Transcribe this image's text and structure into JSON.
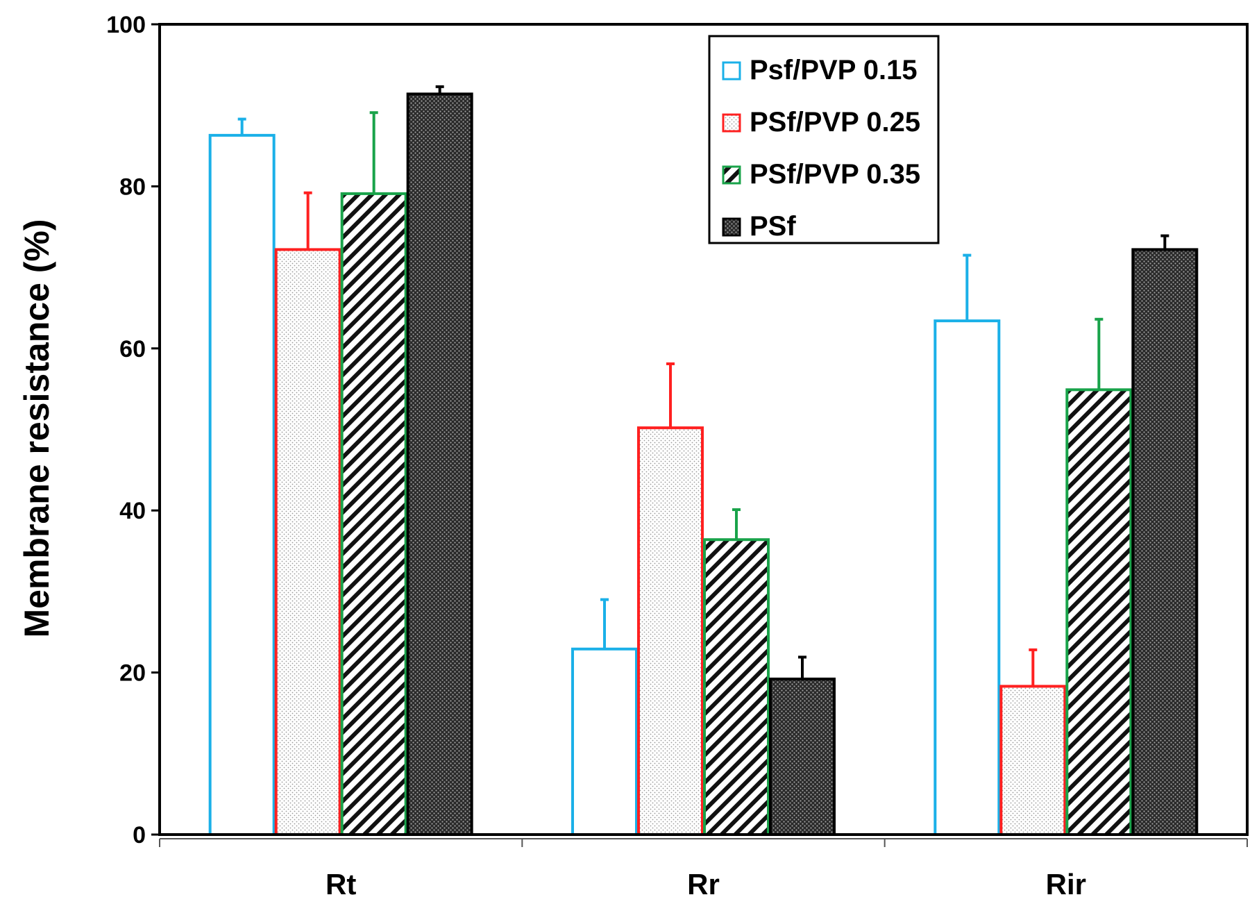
{
  "chart_data": {
    "type": "bar",
    "title": "",
    "xlabel": "",
    "ylabel": "Membrane resistance (%)",
    "ylim": [
      0,
      100
    ],
    "yticks": [
      0,
      20,
      40,
      60,
      80,
      100
    ],
    "categories": [
      "Rt",
      "Rr",
      "Rir"
    ],
    "legend_position": "top-right",
    "series": [
      {
        "name": "Psf/PVP 0.15",
        "color": "#1ab0e8",
        "fill": "none",
        "values": [
          86.3,
          22.9,
          63.4
        ],
        "errors": [
          2.0,
          6.1,
          8.1
        ]
      },
      {
        "name": "PSf/PVP 0.25",
        "color": "#ff2020",
        "fill": "dots",
        "values": [
          72.2,
          50.2,
          18.3
        ],
        "errors": [
          7.0,
          7.9,
          4.5
        ]
      },
      {
        "name": "PSf/PVP 0.35",
        "color": "#19a34a",
        "fill": "diagonal-hatch",
        "values": [
          79.1,
          36.4,
          54.9
        ],
        "errors": [
          10.0,
          3.7,
          8.7
        ]
      },
      {
        "name": "PSf",
        "color": "#000000",
        "fill": "dark-dots",
        "values": [
          91.4,
          19.2,
          72.2
        ],
        "errors": [
          0.9,
          2.7,
          1.7
        ]
      }
    ]
  }
}
